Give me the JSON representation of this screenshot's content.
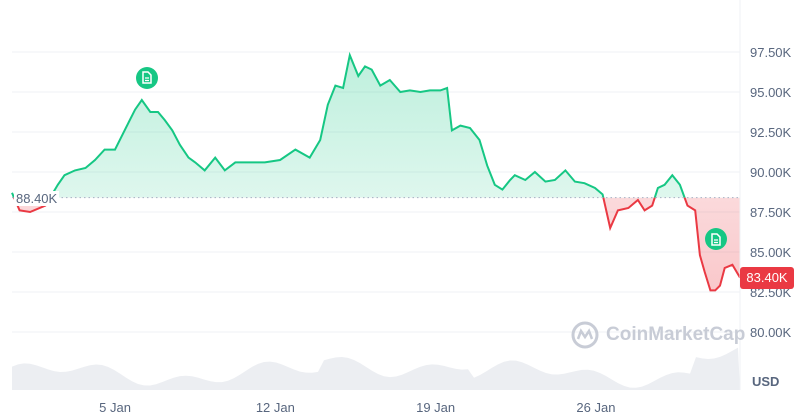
{
  "chart_data": {
    "type": "area",
    "currency": "USD",
    "y_unit": "K",
    "ylim": [
      78.5,
      99.5
    ],
    "y_ticks": [
      "80.00K",
      "82.50K",
      "85.00K",
      "87.50K",
      "90.00K",
      "92.50K",
      "95.00K",
      "97.50K"
    ],
    "y_tick_values": [
      80,
      82.5,
      85,
      87.5,
      90,
      92.5,
      95,
      97.5
    ],
    "x_ticks": [
      {
        "label": "5 Jan",
        "date": "2025-01-05T00:00"
      },
      {
        "label": "12 Jan",
        "date": "2025-01-12T00:00"
      },
      {
        "label": "19 Jan",
        "date": "2025-01-19T00:00"
      },
      {
        "label": "26 Jan",
        "date": "2025-01-26T00:00"
      }
    ],
    "xlim": [
      "2024-12-31T12:00",
      "2025-02-01T07:00"
    ],
    "grid": true,
    "reference_price": 88.4,
    "reference_label": "88.40K",
    "current_price": 83.4,
    "current_label": "83.40K",
    "colors": {
      "up": "#16c784",
      "down": "#ea3943",
      "axis_text": "#58667e",
      "volume": "#eceef2"
    },
    "event_markers": [
      {
        "icon": "document-icon",
        "date": "2025-01-06T09:00",
        "value": 95.9
      },
      {
        "icon": "document-icon",
        "date": "2025-01-31T06:00",
        "value": 85.8
      }
    ],
    "series": [
      {
        "x": [
          "2024-12-31T12:00",
          "2024-12-31T20:00",
          "2025-01-01T07:00",
          "2025-01-01T23:00",
          "2025-01-02T12:00",
          "2025-01-02T19:00",
          "2025-01-03T06:00",
          "2025-01-03T17:00",
          "2025-01-04T03:00",
          "2025-01-04T13:00",
          "2025-01-05T00:00",
          "2025-01-05T10:00",
          "2025-01-05T21:00",
          "2025-01-06T04:00",
          "2025-01-06T13:00",
          "2025-01-06T21:00",
          "2025-01-07T04:00",
          "2025-01-07T12:00",
          "2025-01-07T20:00",
          "2025-01-08T05:00",
          "2025-01-08T12:00",
          "2025-01-08T22:00",
          "2025-01-09T09:00",
          "2025-01-09T19:00",
          "2025-01-10T06:00",
          "2025-01-10T21:00",
          "2025-01-11T13:00",
          "2025-01-12T05:00",
          "2025-01-12T21:00",
          "2025-01-13T12:00",
          "2025-01-13T23:00",
          "2025-01-14T07:00",
          "2025-01-14T15:00",
          "2025-01-14T23:00",
          "2025-01-15T06:00",
          "2025-01-15T15:00",
          "2025-01-15T22:00",
          "2025-01-16T05:00",
          "2025-01-16T14:00",
          "2025-01-17T00:00",
          "2025-01-17T11:00",
          "2025-01-17T21:00",
          "2025-01-18T08:00",
          "2025-01-18T18:00",
          "2025-01-19T05:00",
          "2025-01-19T12:00",
          "2025-01-19T17:00",
          "2025-01-20T02:00",
          "2025-01-20T12:00",
          "2025-01-20T22:00",
          "2025-01-21T06:00",
          "2025-01-21T14:00",
          "2025-01-21T22:00",
          "2025-01-22T06:00",
          "2025-01-22T11:00",
          "2025-01-22T22:00",
          "2025-01-23T08:00",
          "2025-01-23T19:00",
          "2025-01-24T05:00",
          "2025-01-24T16:00",
          "2025-01-25T02:00",
          "2025-01-25T12:00",
          "2025-01-25T23:00",
          "2025-01-26T07:00",
          "2025-01-26T15:00",
          "2025-01-26T23:00",
          "2025-01-27T10:00",
          "2025-01-27T20:00",
          "2025-01-28T03:00",
          "2025-01-28T11:00",
          "2025-01-28T17:00",
          "2025-01-29T00:00",
          "2025-01-29T08:00",
          "2025-01-29T16:00",
          "2025-01-30T00:00",
          "2025-01-30T08:00",
          "2025-01-30T13:00",
          "2025-01-30T18:00",
          "2025-01-31T00:00",
          "2025-01-31T05:00",
          "2025-01-31T10:00",
          "2025-01-31T15:00",
          "2025-01-31T23:00",
          "2025-02-01T07:00"
        ],
        "values": [
          88.7,
          87.6,
          87.5,
          87.9,
          89.2,
          89.8,
          90.1,
          90.25,
          90.75,
          91.4,
          91.4,
          92.6,
          93.9,
          94.5,
          93.75,
          93.75,
          93.25,
          92.6,
          91.7,
          90.9,
          90.6,
          90.1,
          90.9,
          90.1,
          90.6,
          90.6,
          90.6,
          90.75,
          91.4,
          90.9,
          92.0,
          94.2,
          95.4,
          95.25,
          97.3,
          96.0,
          96.6,
          96.4,
          95.4,
          95.75,
          95.0,
          95.1,
          95.0,
          95.1,
          95.1,
          95.25,
          92.6,
          92.9,
          92.75,
          92.0,
          90.4,
          89.2,
          88.9,
          89.5,
          89.8,
          89.5,
          90.0,
          89.4,
          89.5,
          90.1,
          89.4,
          89.3,
          89.0,
          88.6,
          86.5,
          87.6,
          87.75,
          88.25,
          87.6,
          87.9,
          89.0,
          89.2,
          89.8,
          89.2,
          87.9,
          87.6,
          84.8,
          83.75,
          82.6,
          82.6,
          82.9,
          84.0,
          84.2,
          83.4
        ]
      }
    ]
  },
  "watermark": "CoinMarketCap",
  "currency_label": "USD"
}
